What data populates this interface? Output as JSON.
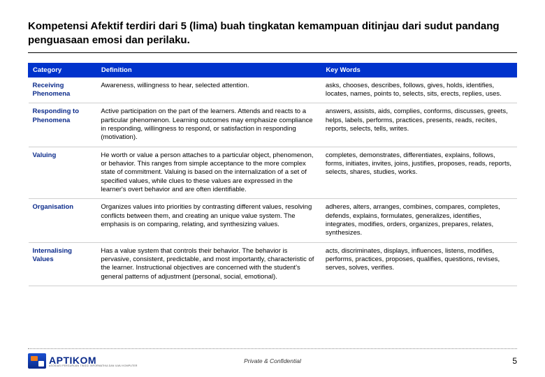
{
  "title": "Kompetensi Afektif terdiri dari 5 (lima) buah tingkatan kemampuan ditinjau dari sudut pandang penguasaan emosi dan perilaku.",
  "table": {
    "headers": [
      "Category",
      "Definition",
      "Key Words"
    ],
    "rows": [
      {
        "category": "Receiving Phenomena",
        "definition": "Awareness, willingness to hear, selected attention.",
        "keywords": "asks, chooses, describes, follows, gives, holds, identifies, locates, names, points to, selects, sits, erects, replies, uses."
      },
      {
        "category": "Responding to Phenomena",
        "definition": "Active participation on the part of the learners. Attends and reacts to a particular phenomenon. Learning outcomes may emphasize compliance in responding, willingness to respond, or satisfaction in responding (motivation).",
        "keywords": "answers, assists, aids, complies, conforms, discusses, greets, helps, labels, performs, practices, presents, reads, recites, reports, selects, tells, writes."
      },
      {
        "category": "Valuing",
        "definition": "He worth or value a person attaches to a particular object, phenomenon, or behavior. This ranges from simple acceptance to the more complex state of commitment. Valuing is based on the internalization of a set of specified values, while clues to these values are expressed in the learner's overt behavior and are often identifiable.",
        "keywords": "completes, demonstrates, differentiates, explains, follows, forms, initiates, invites, joins, justifies, proposes, reads, reports, selects, shares, studies, works."
      },
      {
        "category": "Organisation",
        "definition": "Organizes values into priorities by contrasting different values, resolving conflicts between them, and creating an unique value system. The emphasis is on comparing, relating, and synthesizing values.",
        "keywords": "adheres, alters, arranges, combines, compares, completes, defends, explains, formulates, generalizes, identifies, integrates, modifies, orders, organizes, prepares, relates, synthesizes."
      },
      {
        "category": "Internalising Values",
        "definition": "Has a value system that controls their behavior. The behavior is pervasive, consistent, predictable, and most importantly, characteristic of the learner. Instructional objectives are concerned with the student's general patterns of adjustment (personal, social, emotional).",
        "keywords": "acts, discriminates, displays, influences, listens, modifies, performs, practices, proposes, qualifies, questions, revises, serves, solves, verifies."
      }
    ],
    "header_bg": "#0033cc",
    "header_fg": "#ffffff",
    "category_color": "#0a2a8a",
    "border_color": "#cfcfcf"
  },
  "footer": {
    "logo_text": "APTIKOM",
    "logo_sub": "ASOSIASI PERGURUAN TINGGI INFORMATIKA DAN ILMU KOMPUTER",
    "confidential": "Private & Confidential",
    "page_number": "5"
  }
}
